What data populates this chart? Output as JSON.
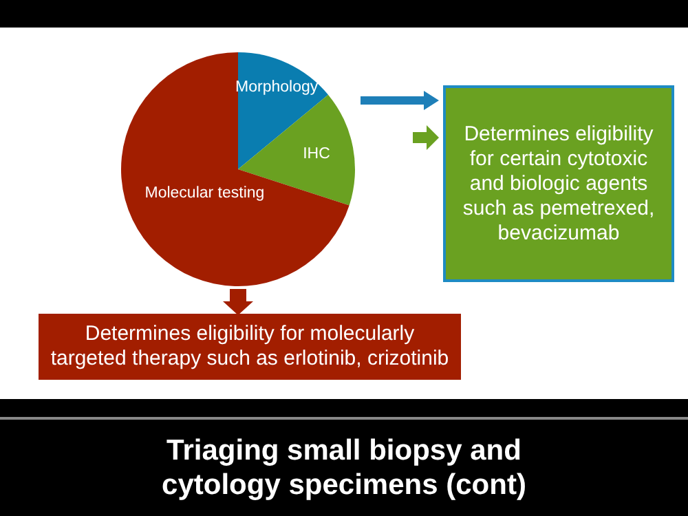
{
  "chart_data": {
    "type": "pie",
    "title": "Triaging small biopsy and cytology specimens (cont)",
    "categories": [
      "Morphology",
      "IHC",
      "Molecular testing"
    ],
    "values": [
      14,
      16,
      70
    ],
    "colors": [
      "#0a7db0",
      "#6aa121",
      "#a21e00"
    ],
    "annotations": [
      "Determines eligibility for certain cytotoxic and biologic agents such as pemetrexed, bevacizumab",
      "Determines eligibility for molecularly targeted therapy such as erlotinib, crizotinib"
    ]
  }
}
